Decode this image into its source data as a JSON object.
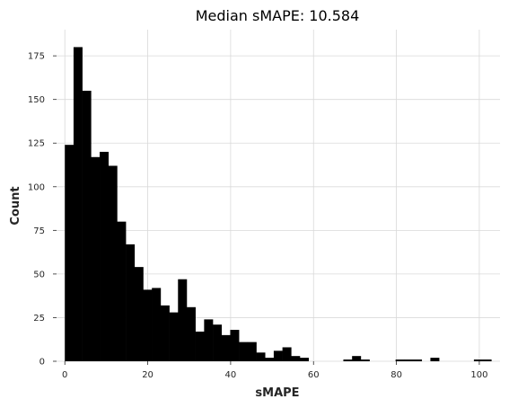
{
  "chart_data": {
    "type": "bar",
    "title": "Median sMAPE: 10.584",
    "xlabel": "sMAPE",
    "ylabel": "Count",
    "xlim": [
      -2,
      105
    ],
    "ylim": [
      0,
      190
    ],
    "xticks": [
      0,
      20,
      40,
      60,
      80,
      100
    ],
    "yticks": [
      0,
      25,
      50,
      75,
      100,
      125,
      150,
      175
    ],
    "grid": true,
    "bin_width": 2.1,
    "bins": [
      {
        "x": 0.0,
        "count": 124
      },
      {
        "x": 2.1,
        "count": 180
      },
      {
        "x": 4.2,
        "count": 155
      },
      {
        "x": 6.3,
        "count": 117
      },
      {
        "x": 8.4,
        "count": 120
      },
      {
        "x": 10.5,
        "count": 112
      },
      {
        "x": 12.6,
        "count": 80
      },
      {
        "x": 14.7,
        "count": 67
      },
      {
        "x": 16.8,
        "count": 54
      },
      {
        "x": 18.9,
        "count": 41
      },
      {
        "x": 21.0,
        "count": 42
      },
      {
        "x": 23.1,
        "count": 32
      },
      {
        "x": 25.2,
        "count": 28
      },
      {
        "x": 27.3,
        "count": 47
      },
      {
        "x": 29.4,
        "count": 31
      },
      {
        "x": 31.5,
        "count": 17
      },
      {
        "x": 33.6,
        "count": 24
      },
      {
        "x": 35.7,
        "count": 21
      },
      {
        "x": 37.8,
        "count": 15
      },
      {
        "x": 39.9,
        "count": 18
      },
      {
        "x": 42.0,
        "count": 11
      },
      {
        "x": 44.1,
        "count": 11
      },
      {
        "x": 46.2,
        "count": 5
      },
      {
        "x": 48.3,
        "count": 2
      },
      {
        "x": 50.4,
        "count": 6
      },
      {
        "x": 52.5,
        "count": 8
      },
      {
        "x": 54.6,
        "count": 3
      },
      {
        "x": 56.7,
        "count": 2
      },
      {
        "x": 67.2,
        "count": 1
      },
      {
        "x": 69.3,
        "count": 3
      },
      {
        "x": 71.4,
        "count": 1
      },
      {
        "x": 79.8,
        "count": 1
      },
      {
        "x": 81.9,
        "count": 1
      },
      {
        "x": 84.0,
        "count": 1
      },
      {
        "x": 88.2,
        "count": 2
      },
      {
        "x": 98.7,
        "count": 1
      },
      {
        "x": 100.8,
        "count": 1
      }
    ]
  }
}
